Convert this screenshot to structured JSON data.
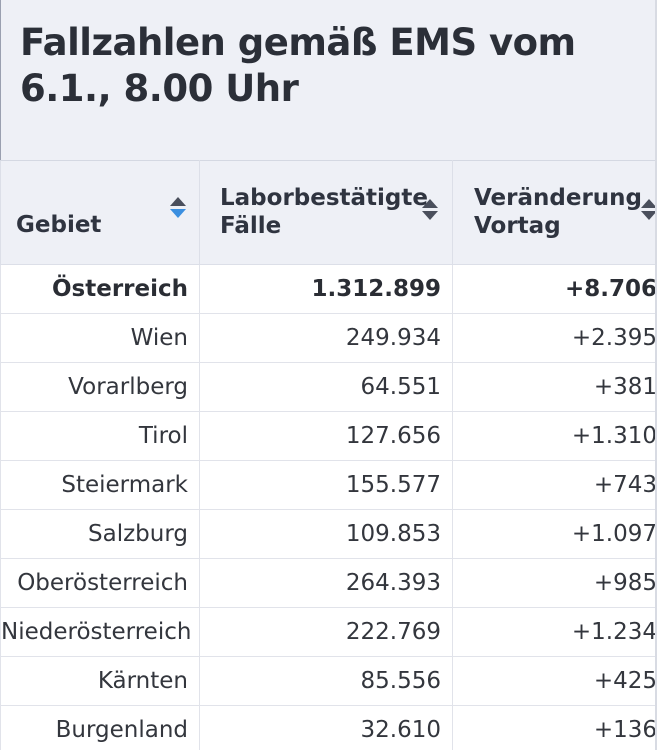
{
  "title": "Fallzahlen gemäß EMS vom 6.1., 8.00 Uhr",
  "table": {
    "headers": {
      "gebiet": "Gebiet",
      "faelle": "Laborbestätigte Fälle",
      "veraenderung": "Veränderung Vortag"
    },
    "sort_icons": {
      "gebiet": "sort-icon-active-descending",
      "faelle": "sort-icon",
      "veraenderung": "sort-icon"
    },
    "active_sort_color": "#3b8fe0",
    "rows": [
      {
        "gebiet": "Österreich",
        "faelle": "1.312.899",
        "veraenderung": "+8.706"
      },
      {
        "gebiet": "Wien",
        "faelle": "249.934",
        "veraenderung": "+2.395"
      },
      {
        "gebiet": "Vorarlberg",
        "faelle": "64.551",
        "veraenderung": "+381"
      },
      {
        "gebiet": "Tirol",
        "faelle": "127.656",
        "veraenderung": "+1.310"
      },
      {
        "gebiet": "Steiermark",
        "faelle": "155.577",
        "veraenderung": "+743"
      },
      {
        "gebiet": "Salzburg",
        "faelle": "109.853",
        "veraenderung": "+1.097"
      },
      {
        "gebiet": "Oberösterreich",
        "faelle": "264.393",
        "veraenderung": "+985"
      },
      {
        "gebiet": "Niederösterreich",
        "faelle": "222.769",
        "veraenderung": "+1.234"
      },
      {
        "gebiet": "Kärnten",
        "faelle": "85.556",
        "veraenderung": "+425"
      },
      {
        "gebiet": "Burgenland",
        "faelle": "32.610",
        "veraenderung": "+136"
      }
    ]
  }
}
